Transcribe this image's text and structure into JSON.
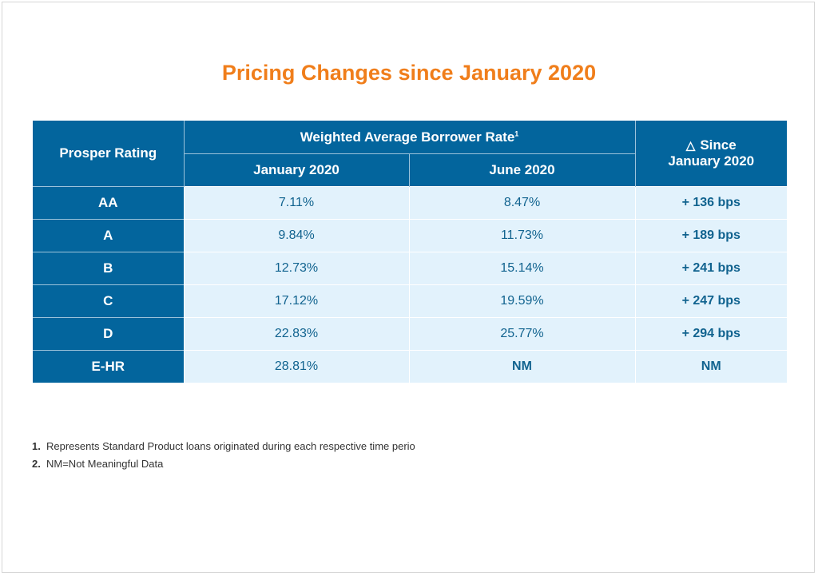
{
  "title": "Pricing Changes since January 2020",
  "table": {
    "header": {
      "rating": "Prosper Rating",
      "group": "Weighted Average Borrower Rate",
      "group_sup": "1",
      "delta_symbol": "△",
      "delta_line1": "Since",
      "delta_line2": "January 2020",
      "col_jan": "January 2020",
      "col_jun": "June 2020"
    },
    "rows": [
      {
        "rating": "AA",
        "jan": "7.11%",
        "jun": "8.47%",
        "change": "+ 136 bps"
      },
      {
        "rating": "A",
        "jan": "9.84%",
        "jun": "11.73%",
        "change": "+ 189 bps"
      },
      {
        "rating": "B",
        "jan": "12.73%",
        "jun": "15.14%",
        "change": "+ 241 bps"
      },
      {
        "rating": "C",
        "jan": "17.12%",
        "jun": "19.59%",
        "change": "+ 247 bps"
      },
      {
        "rating": "D",
        "jan": "22.83%",
        "jun": "25.77%",
        "change": "+ 294 bps"
      },
      {
        "rating": "E-HR",
        "jan": "28.81%",
        "jun": "NM",
        "change": "NM"
      }
    ]
  },
  "footnotes": [
    {
      "num": "1.",
      "text": "Represents Standard Product loans originated during each respective time perio"
    },
    {
      "num": "2.",
      "text": "NM=Not Meaningful Data"
    }
  ],
  "colors": {
    "title": "#f07e1b",
    "header_bg": "#03659d",
    "cell_bg": "#e2f2fc",
    "cell_text": "#11638f"
  }
}
